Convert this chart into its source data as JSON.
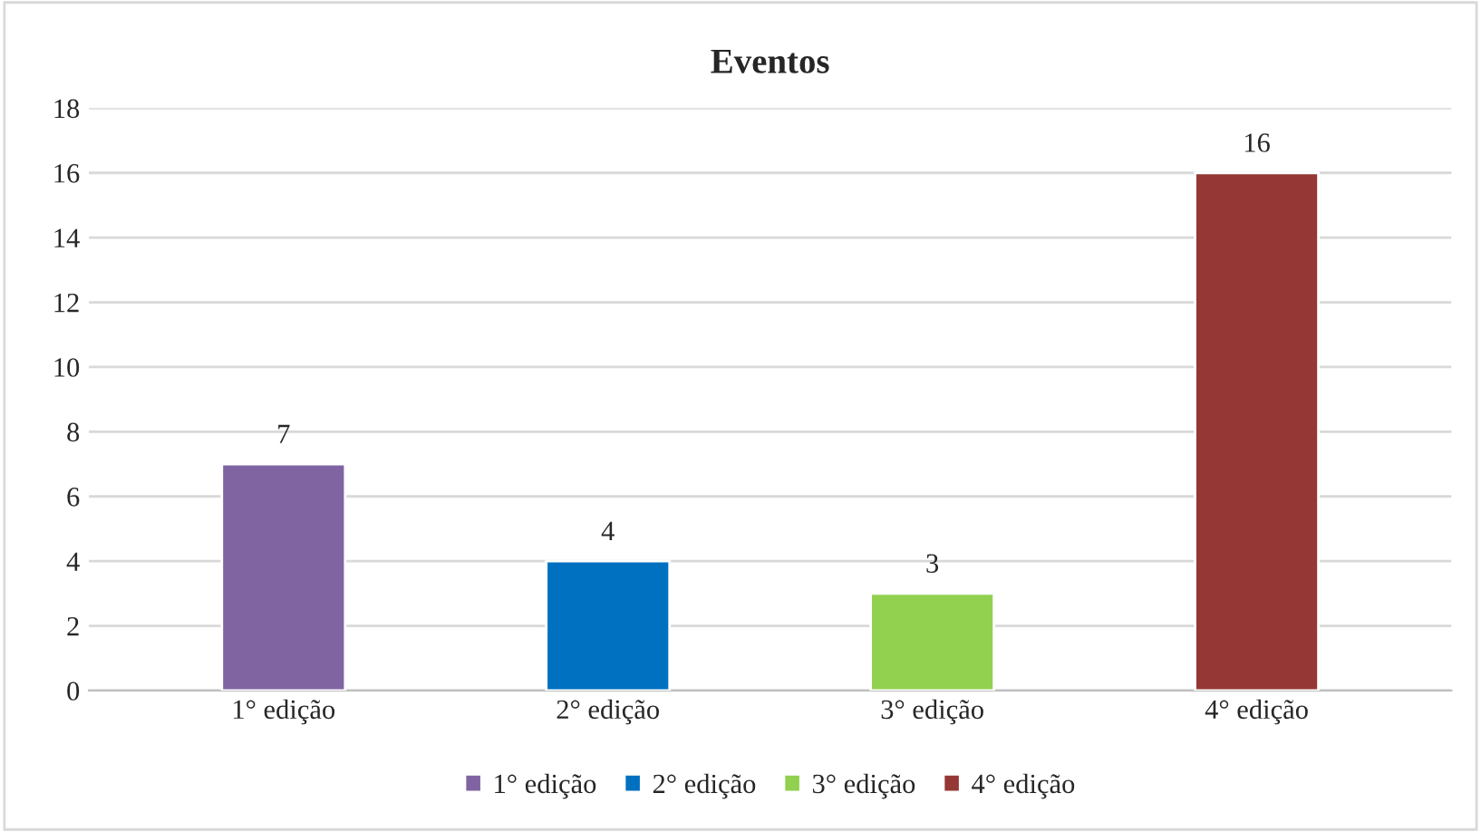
{
  "chart_data": {
    "type": "bar",
    "title": "Eventos",
    "categories": [
      "1° edição",
      "2° edição",
      "3° edição",
      "4° edição"
    ],
    "series": [
      {
        "name": "1° edição",
        "color": "#8064a2",
        "values": [
          7,
          null,
          null,
          null
        ]
      },
      {
        "name": "2° edição",
        "color": "#0070c0",
        "values": [
          null,
          4,
          null,
          null
        ]
      },
      {
        "name": "3° edição",
        "color": "#92d050",
        "values": [
          null,
          null,
          3,
          null
        ]
      },
      {
        "name": "4° edição",
        "color": "#953735",
        "values": [
          null,
          null,
          null,
          16
        ]
      }
    ],
    "ylim": [
      0,
      18
    ],
    "yticks": [
      0,
      2,
      4,
      6,
      8,
      10,
      12,
      14,
      16,
      18
    ],
    "grid": "y",
    "data_labels": true,
    "legend": "bottom"
  }
}
